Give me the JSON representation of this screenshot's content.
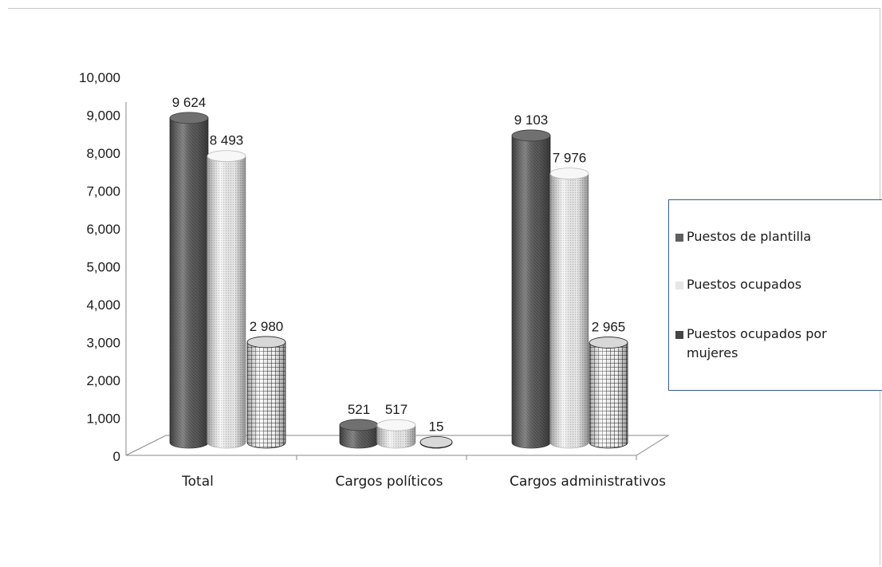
{
  "chart_data": {
    "type": "bar",
    "categories": [
      "Total",
      "Cargos políticos",
      "Cargos administrativos"
    ],
    "series": [
      {
        "name": "Puestos de plantilla",
        "values": [
          9624,
          521,
          9103
        ],
        "labels": [
          "9 624",
          "521",
          "9 103"
        ],
        "color": "#5f5f5f"
      },
      {
        "name": "Puestos ocupados",
        "values": [
          8493,
          517,
          7976
        ],
        "labels": [
          "8 493",
          "517",
          "7 976"
        ],
        "color": "#ececec"
      },
      {
        "name": "Puestos ocupados por mujeres",
        "values": [
          2980,
          15,
          2965
        ],
        "labels": [
          "2 980",
          "15",
          "2 965"
        ],
        "color": "#9a9a9a"
      }
    ],
    "ylim": [
      0,
      10000
    ],
    "yticks": [
      0,
      1000,
      2000,
      3000,
      4000,
      5000,
      6000,
      7000,
      8000,
      9000,
      10000
    ],
    "ytick_labels": [
      "0",
      "1,000",
      "2,000",
      "3,000",
      "4,000",
      "5,000",
      "6,000",
      "7,000",
      "8,000",
      "9,000",
      "10,000"
    ],
    "legend_position": "right",
    "style": "3d-cylinder"
  }
}
